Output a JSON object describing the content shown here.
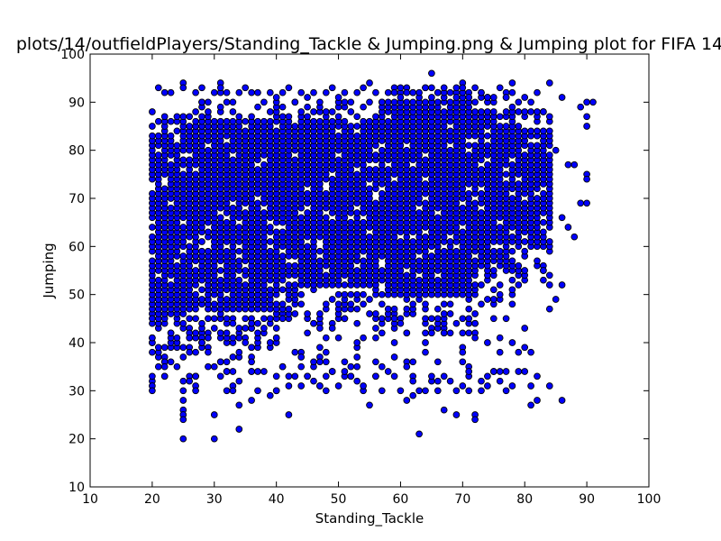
{
  "chart_data": {
    "type": "scatter",
    "title": "plots/14/outfieldPlayers/Standing_Tackle & Jumping.png & Jumping plot for FIFA 14",
    "xlabel": "Standing_Tackle",
    "ylabel": "Jumping",
    "xlim": [
      10,
      100
    ],
    "ylim": [
      10,
      100
    ],
    "xticks": [
      10,
      20,
      30,
      40,
      50,
      60,
      70,
      80,
      90,
      100
    ],
    "yticks": [
      10,
      20,
      30,
      40,
      50,
      60,
      70,
      80,
      90,
      100
    ],
    "grid": false,
    "legend": "none",
    "marker_color": "#0000ff",
    "marker_edge_color": "#000000",
    "note_points": "dense integer-valued cloud; outliers listed explicitly",
    "points": [
      [
        20,
        88
      ],
      [
        20,
        33
      ],
      [
        20,
        31
      ],
      [
        20,
        30
      ],
      [
        21,
        93
      ],
      [
        22,
        92
      ],
      [
        22,
        35
      ],
      [
        23,
        92
      ],
      [
        24,
        41
      ],
      [
        24,
        35
      ],
      [
        25,
        94
      ],
      [
        25,
        93
      ],
      [
        25,
        32
      ],
      [
        25,
        30
      ],
      [
        25,
        28
      ],
      [
        25,
        26
      ],
      [
        25,
        25
      ],
      [
        25,
        24
      ],
      [
        25,
        20
      ],
      [
        26,
        41
      ],
      [
        27,
        92
      ],
      [
        27,
        30
      ],
      [
        27,
        42
      ],
      [
        28,
        93
      ],
      [
        28,
        90
      ],
      [
        28,
        40
      ],
      [
        29,
        41
      ],
      [
        29,
        38
      ],
      [
        30,
        92
      ],
      [
        30,
        35
      ],
      [
        30,
        25
      ],
      [
        30,
        20
      ],
      [
        31,
        92
      ],
      [
        31,
        94
      ],
      [
        31,
        93
      ],
      [
        31,
        36
      ],
      [
        32,
        92
      ],
      [
        32,
        34
      ],
      [
        33,
        88
      ],
      [
        33,
        34
      ],
      [
        34,
        92
      ],
      [
        34,
        27
      ],
      [
        34,
        22
      ],
      [
        35,
        93
      ],
      [
        35,
        40
      ],
      [
        36,
        92
      ],
      [
        36,
        34
      ],
      [
        36,
        28
      ],
      [
        37,
        92
      ],
      [
        37,
        30
      ],
      [
        38,
        90
      ],
      [
        38,
        34
      ],
      [
        39,
        92
      ],
      [
        39,
        29
      ],
      [
        40,
        91
      ],
      [
        40,
        33
      ],
      [
        41,
        92
      ],
      [
        41,
        35
      ],
      [
        42,
        93
      ],
      [
        42,
        25
      ],
      [
        43,
        90
      ],
      [
        43,
        33
      ],
      [
        44,
        92
      ],
      [
        44,
        35
      ],
      [
        45,
        91
      ],
      [
        45,
        33
      ],
      [
        46,
        92
      ],
      [
        46,
        36
      ],
      [
        47,
        90
      ],
      [
        47,
        31
      ],
      [
        48,
        92
      ],
      [
        48,
        33
      ],
      [
        49,
        93
      ],
      [
        49,
        34
      ],
      [
        50,
        91
      ],
      [
        50,
        31
      ],
      [
        51,
        92
      ],
      [
        51,
        36
      ],
      [
        52,
        90
      ],
      [
        52,
        33
      ],
      [
        53,
        92
      ],
      [
        53,
        35
      ],
      [
        54,
        93
      ],
      [
        54,
        31
      ],
      [
        55,
        94
      ],
      [
        55,
        27
      ],
      [
        56,
        92
      ],
      [
        56,
        36
      ],
      [
        57,
        90
      ],
      [
        57,
        35
      ],
      [
        58,
        92
      ],
      [
        58,
        34
      ],
      [
        59,
        92
      ],
      [
        59,
        33
      ],
      [
        60,
        91
      ],
      [
        60,
        30
      ],
      [
        61,
        92
      ],
      [
        61,
        28
      ],
      [
        62,
        92
      ],
      [
        62,
        29
      ],
      [
        63,
        92
      ],
      [
        63,
        21
      ],
      [
        64,
        93
      ],
      [
        64,
        30
      ],
      [
        65,
        96
      ],
      [
        65,
        33
      ],
      [
        66,
        92
      ],
      [
        66,
        32
      ],
      [
        67,
        93
      ],
      [
        67,
        26
      ],
      [
        68,
        92
      ],
      [
        68,
        32
      ],
      [
        69,
        91
      ],
      [
        69,
        25
      ],
      [
        70,
        93
      ],
      [
        70,
        31
      ],
      [
        71,
        91
      ],
      [
        71,
        34
      ],
      [
        72,
        93
      ],
      [
        72,
        25
      ],
      [
        72,
        24
      ],
      [
        73,
        92
      ],
      [
        73,
        30
      ],
      [
        74,
        91
      ],
      [
        74,
        33
      ],
      [
        75,
        91
      ],
      [
        75,
        34
      ],
      [
        76,
        93
      ],
      [
        76,
        38
      ],
      [
        77,
        91
      ],
      [
        77,
        34
      ],
      [
        78,
        94
      ],
      [
        78,
        40
      ],
      [
        79,
        90
      ],
      [
        80,
        91
      ],
      [
        80,
        43
      ],
      [
        81,
        90
      ],
      [
        81,
        27
      ],
      [
        82,
        92
      ],
      [
        82,
        33
      ],
      [
        82,
        28
      ],
      [
        83,
        88
      ],
      [
        83,
        55
      ],
      [
        84,
        94
      ],
      [
        84,
        31
      ],
      [
        84,
        47
      ],
      [
        85,
        80
      ],
      [
        85,
        49
      ],
      [
        86,
        91
      ],
      [
        86,
        52
      ],
      [
        86,
        28
      ],
      [
        86,
        66
      ],
      [
        87,
        77
      ],
      [
        87,
        64
      ],
      [
        88,
        77
      ],
      [
        88,
        62
      ],
      [
        89,
        89
      ],
      [
        89,
        69
      ],
      [
        90,
        90
      ],
      [
        90,
        75
      ],
      [
        90,
        74
      ],
      [
        90,
        69
      ],
      [
        90,
        87
      ],
      [
        90,
        85
      ],
      [
        91,
        90
      ]
    ]
  }
}
